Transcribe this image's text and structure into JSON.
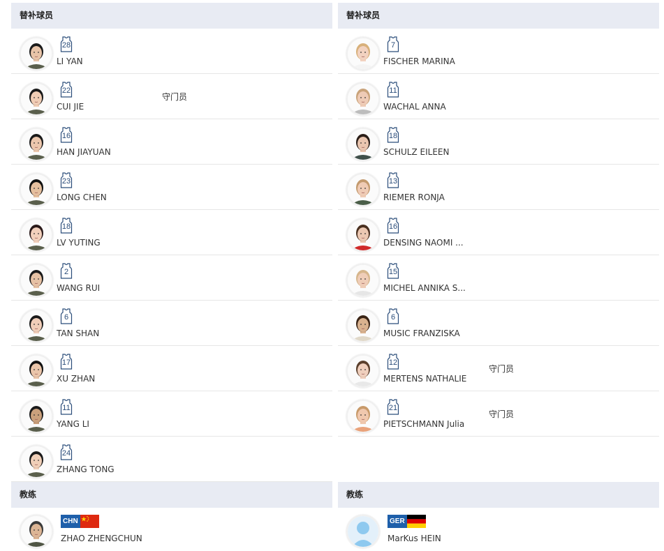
{
  "left": {
    "subs_header": "替补球员",
    "coach_header": "教练",
    "players": [
      {
        "number": "28",
        "name": "LI YAN",
        "role": "",
        "skin": "#e8c4a8",
        "hair": "#1a1a1a",
        "shirt": "#5a5f4c"
      },
      {
        "number": "22",
        "name": "CUI JIE",
        "role": "守门员",
        "skin": "#f0cdb5",
        "hair": "#1a1a1a",
        "shirt": "#5a5f4c"
      },
      {
        "number": "16",
        "name": "HAN JIAYUAN",
        "role": "",
        "skin": "#ecc7ad",
        "hair": "#1a1a1a",
        "shirt": "#5a5f4c"
      },
      {
        "number": "23",
        "name": "LONG CHEN",
        "role": "",
        "skin": "#e5bf9e",
        "hair": "#111111",
        "shirt": "#5a5f4c"
      },
      {
        "number": "18",
        "name": "LV YUTING",
        "role": "",
        "skin": "#f2d0bc",
        "hair": "#2a1a1a",
        "shirt": "#5a5f4c"
      },
      {
        "number": "2",
        "name": "WANG RUI",
        "role": "",
        "skin": "#e6c1a4",
        "hair": "#1a1a1a",
        "shirt": "#5a5f4c"
      },
      {
        "number": "6",
        "name": "TAN SHAN",
        "role": "",
        "skin": "#f0cdb8",
        "hair": "#1a1a1a",
        "shirt": "#5a5f4c"
      },
      {
        "number": "17",
        "name": "XU ZHAN",
        "role": "",
        "skin": "#eac5aa",
        "hair": "#111111",
        "shirt": "#5a5f4c"
      },
      {
        "number": "11",
        "name": "YANG LI",
        "role": "",
        "skin": "#caa07c",
        "hair": "#1a1a1a",
        "shirt": "#5a5f4c"
      },
      {
        "number": "24",
        "name": "ZHANG TONG",
        "role": "",
        "skin": "#f0cfb8",
        "hair": "#1a1a1a",
        "shirt": "#5a5f4c"
      }
    ],
    "coach": {
      "code": "CHN",
      "name": "ZHAO ZHENGCHUN",
      "skin": "#dcb595",
      "hair": "#3a3a3a",
      "shirt": "#4f5544"
    }
  },
  "right": {
    "subs_header": "替补球员",
    "coach_header": "教练",
    "players": [
      {
        "number": "7",
        "name": "FISCHER MARINA",
        "role": "",
        "skin": "#f2d2c0",
        "hair": "#d8b07a",
        "shirt": "#f4f4f4"
      },
      {
        "number": "11",
        "name": "WACHAL ANNA",
        "role": "",
        "skin": "#eecbb6",
        "hair": "#c9a37a",
        "shirt": "#bdbdbd"
      },
      {
        "number": "18",
        "name": "SCHULZ EILEEN",
        "role": "",
        "skin": "#eac6b0",
        "hair": "#2a1e18",
        "shirt": "#3f4f4a"
      },
      {
        "number": "13",
        "name": "RIEMER RONJA",
        "role": "",
        "skin": "#efcbb5",
        "hair": "#c39a6e",
        "shirt": "#4a5e48"
      },
      {
        "number": "16",
        "name": "DENSING NAOMI ...",
        "role": "",
        "skin": "#ecc8b2",
        "hair": "#4a3020",
        "shirt": "#d02a2a"
      },
      {
        "number": "15",
        "name": "MICHEL ANNIKA S...",
        "role": "",
        "skin": "#efcdb8",
        "hair": "#d6b68c",
        "shirt": "#e6e6e6"
      },
      {
        "number": "6",
        "name": "MUSIC FRANZISKA",
        "role": "",
        "skin": "#d9b28f",
        "hair": "#3a2416",
        "shirt": "#e0d8c8"
      },
      {
        "number": "12",
        "name": "MERTENS NATHALIE",
        "role": "守门员",
        "skin": "#efcfbd",
        "hair": "#5a3f2c",
        "shirt": "#e8e8e8"
      },
      {
        "number": "21",
        "name": "PIETSCHMANN Julia",
        "role": "守门员",
        "skin": "#f0c8ae",
        "hair": "#c89a6a",
        "shirt": "#e9a27a"
      }
    ],
    "coach": {
      "code": "GER",
      "name": "MarKus HEIN",
      "skin": "#8ec9ef",
      "hair": "#8ec9ef",
      "shirt": "#8ec9ef"
    }
  },
  "colors": {
    "header_bg": "#e8ebf3",
    "divider": "#e6e6e6",
    "badge_blue": "#1e5faa",
    "jersey_stroke": "#2b4d7a"
  },
  "icons": {
    "jersey": "jersey-icon",
    "avatar": "avatar",
    "flag_chn": "china-flag-icon",
    "flag_ger": "germany-flag-icon"
  }
}
